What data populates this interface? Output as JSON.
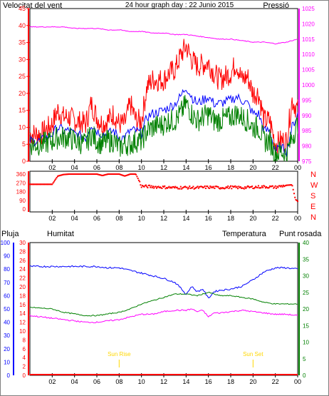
{
  "header": {
    "wind_label": "Velocitat del vent",
    "title": "24 hour graph day : 22 Junio 2015",
    "pressure_label": "Pressió"
  },
  "legend": {
    "rain_label": "Pluja",
    "humidity_label": "Humitat",
    "temperature_label": "Temperatura",
    "dewpoint_label": "Punt rosada",
    "sunrise_label": "Sun Rise",
    "sunset_label": "Sun Set"
  },
  "x_ticks": [
    "02",
    "04",
    "06",
    "08",
    "10",
    "12",
    "14",
    "16",
    "18",
    "20",
    "22",
    "00"
  ],
  "colors": {
    "wind_gust": "#ff0000",
    "wind_avg": "#0000ff",
    "wind_speed": "#008000",
    "pressure": "#ff00ff",
    "direction": "#ff0000",
    "temperature": "#008000",
    "humidity": "#0000ff",
    "dewpoint": "#ff00ff",
    "rain": "#ff0000",
    "sun_marker": "#ffd700"
  },
  "chart_data": [
    {
      "type": "line",
      "name": "wind-and-pressure",
      "x_unit": "hour",
      "x_ticks": [
        2,
        4,
        6,
        8,
        10,
        12,
        14,
        16,
        18,
        20,
        22,
        24
      ],
      "y_left": {
        "label": "Velocitat del vent",
        "lim": [
          0,
          45
        ],
        "ticks": [
          0,
          5,
          10,
          15,
          20,
          25,
          30,
          35,
          40,
          45
        ]
      },
      "y_right": {
        "label": "Pressió",
        "lim": [
          975,
          1025
        ],
        "ticks": [
          975,
          980,
          985,
          990,
          995,
          1000,
          1005,
          1010,
          1015,
          1020,
          1025
        ]
      },
      "series": [
        {
          "key": "gust",
          "axis": "left",
          "x": [
            0,
            1,
            2,
            2.5,
            3,
            3.5,
            4,
            5,
            5.5,
            6,
            6.5,
            7,
            7.5,
            8,
            8.5,
            9,
            9.5,
            10,
            10.5,
            11,
            12,
            12.5,
            13,
            13.5,
            14,
            14.5,
            15,
            16,
            16.5,
            17,
            18,
            18.5,
            19,
            19.5,
            20,
            20.5,
            21,
            21.5,
            22,
            22.5,
            23,
            23.5,
            24
          ],
          "values": [
            8,
            8,
            11,
            15,
            13,
            13,
            12,
            11,
            17,
            13,
            11,
            12,
            14,
            11,
            11,
            17,
            12,
            12,
            22,
            24,
            24,
            26,
            27,
            31,
            34,
            30,
            28,
            29,
            26,
            24,
            26,
            29,
            24,
            25,
            20,
            20,
            12,
            12,
            5,
            6,
            6,
            18,
            15
          ]
        },
        {
          "key": "avg",
          "axis": "left",
          "x": [
            0,
            1,
            2,
            2.5,
            3,
            3.5,
            4,
            5,
            5.5,
            6,
            6.5,
            7,
            7.5,
            8,
            8.5,
            9,
            9.5,
            10,
            10.5,
            11,
            12,
            12.5,
            13,
            13.5,
            14,
            14.5,
            15,
            16,
            16.5,
            17,
            18,
            18.5,
            19,
            19.5,
            20,
            20.5,
            21,
            21.5,
            22,
            22.5,
            23,
            23.5,
            24
          ],
          "values": [
            6,
            6,
            8,
            10,
            9,
            9,
            8,
            7,
            11,
            9,
            8,
            8,
            9,
            7,
            7,
            9,
            9,
            8,
            13,
            14,
            15,
            16,
            17,
            19,
            22,
            19,
            17,
            19,
            17,
            17,
            18,
            19,
            18,
            17,
            14,
            14,
            9,
            9,
            3,
            4,
            3,
            10,
            14
          ]
        },
        {
          "key": "speed",
          "axis": "left",
          "x": [
            0,
            1,
            2,
            2.5,
            3,
            3.5,
            4,
            5,
            5.5,
            6,
            6.5,
            7,
            7.5,
            8,
            8.5,
            9,
            9.5,
            10,
            10.5,
            11,
            12,
            12.5,
            13,
            13.5,
            14,
            14.5,
            15,
            16,
            16.5,
            17,
            18,
            18.5,
            19,
            19.5,
            20,
            20.5,
            21,
            21.5,
            22,
            22.5,
            23,
            23.5,
            24
          ],
          "values": [
            5,
            5,
            6,
            7,
            7,
            7,
            6,
            5,
            8,
            6,
            5,
            6,
            6,
            4,
            5,
            5,
            6,
            6,
            9,
            10,
            11,
            12,
            12,
            14,
            17,
            14,
            12,
            14,
            12,
            12,
            13,
            14,
            13,
            12,
            10,
            10,
            6,
            6,
            2,
            3,
            2,
            7,
            11
          ]
        },
        {
          "key": "pressure",
          "axis": "right",
          "x": [
            0,
            1,
            2,
            3,
            4,
            5,
            6,
            7,
            8,
            9,
            10,
            11,
            12,
            13,
            14,
            15,
            16,
            17,
            18,
            19,
            20,
            21,
            22,
            23,
            24
          ],
          "values": [
            1019,
            1019,
            1019,
            1019,
            1018.5,
            1018.5,
            1018.5,
            1018,
            1018,
            1017.5,
            1017.5,
            1017,
            1017,
            1016.5,
            1016.5,
            1016,
            1015.5,
            1015,
            1015,
            1014.5,
            1014,
            1014,
            1013.5,
            1014,
            1015
          ]
        }
      ]
    },
    {
      "type": "scatter",
      "name": "wind-direction",
      "x_unit": "hour",
      "y_ticks": [
        0,
        90,
        180,
        270,
        360
      ],
      "y_right_labels": [
        "N",
        "W",
        "S",
        "E",
        "N"
      ],
      "ylim": [
        0,
        360
      ],
      "x": [
        0,
        1,
        2,
        2.5,
        3,
        3.5,
        4,
        5,
        6,
        6.5,
        7,
        7.5,
        8,
        8.5,
        9,
        9.5,
        10,
        11,
        12,
        13,
        14,
        15,
        16,
        17,
        18,
        19,
        20,
        21,
        22,
        23,
        23.5,
        23.8,
        24
      ],
      "values": [
        255,
        255,
        255,
        340,
        355,
        360,
        360,
        360,
        360,
        345,
        360,
        360,
        360,
        340,
        360,
        360,
        235,
        230,
        225,
        220,
        222,
        220,
        225,
        220,
        225,
        220,
        225,
        230,
        225,
        245,
        250,
        100,
        80
      ]
    },
    {
      "type": "line",
      "name": "temperature-humidity-dewpoint-rain",
      "x_unit": "hour",
      "y_rain": {
        "label": "Pluja",
        "lim": [
          0,
          100
        ],
        "ticks": [
          0,
          10,
          20,
          30,
          40,
          50,
          60,
          70,
          80,
          90,
          100
        ]
      },
      "y_humidity_scale": {
        "lim": [
          0,
          30
        ],
        "ticks": [
          0,
          2,
          4,
          6,
          8,
          10,
          12,
          14,
          16,
          18,
          20,
          22,
          24,
          26,
          28,
          30
        ]
      },
      "y_temperature": {
        "label": "Temperatura",
        "lim": [
          0,
          40
        ],
        "ticks": [
          0,
          5,
          10,
          15,
          20,
          25,
          30,
          35,
          40
        ]
      },
      "sun_rise_hour": 8,
      "sun_set_hour": 20,
      "series": [
        {
          "key": "humidity",
          "axis": "left",
          "x": [
            0,
            2,
            4,
            6,
            7,
            8,
            9,
            10,
            11,
            12,
            13,
            13.5,
            14,
            14.5,
            15,
            15.5,
            16,
            16.5,
            17,
            18,
            19,
            20,
            21,
            22,
            23,
            24
          ],
          "values": [
            82,
            82,
            82,
            82,
            81,
            81,
            79,
            77,
            75,
            73,
            70,
            66,
            61,
            67,
            63,
            65,
            58,
            63,
            64,
            65,
            67,
            72,
            78,
            81,
            81,
            80
          ]
        },
        {
          "key": "temperature",
          "axis": "right",
          "x": [
            0,
            2,
            3,
            4,
            5,
            6,
            7,
            8,
            9,
            10,
            11,
            12,
            13,
            14,
            15,
            16,
            17,
            18,
            19,
            20,
            21,
            22,
            23,
            24
          ],
          "values": [
            20.5,
            20,
            19,
            18.5,
            18,
            18,
            18.5,
            19,
            20,
            21.5,
            22.5,
            23.5,
            24.5,
            24.5,
            24,
            25,
            24,
            24,
            23.5,
            23,
            22,
            21.5,
            21.5,
            21.5
          ]
        },
        {
          "key": "dewpoint",
          "axis": "left",
          "x": [
            0,
            1,
            2,
            3,
            4,
            5,
            6,
            7,
            8,
            9,
            10,
            11,
            12,
            13,
            14,
            14.5,
            15,
            15.5,
            16,
            16.5,
            17,
            18,
            19,
            20,
            21,
            22,
            23,
            24
          ],
          "values": [
            45,
            44,
            43,
            42,
            41,
            40,
            40,
            41,
            42,
            44,
            46,
            46,
            48,
            49,
            49,
            50,
            48,
            49,
            44,
            47,
            47,
            48,
            49,
            48,
            47,
            46,
            46,
            45
          ]
        },
        {
          "key": "rain",
          "axis": "left",
          "x": [
            0,
            24
          ],
          "values": [
            0,
            0
          ]
        }
      ]
    }
  ]
}
